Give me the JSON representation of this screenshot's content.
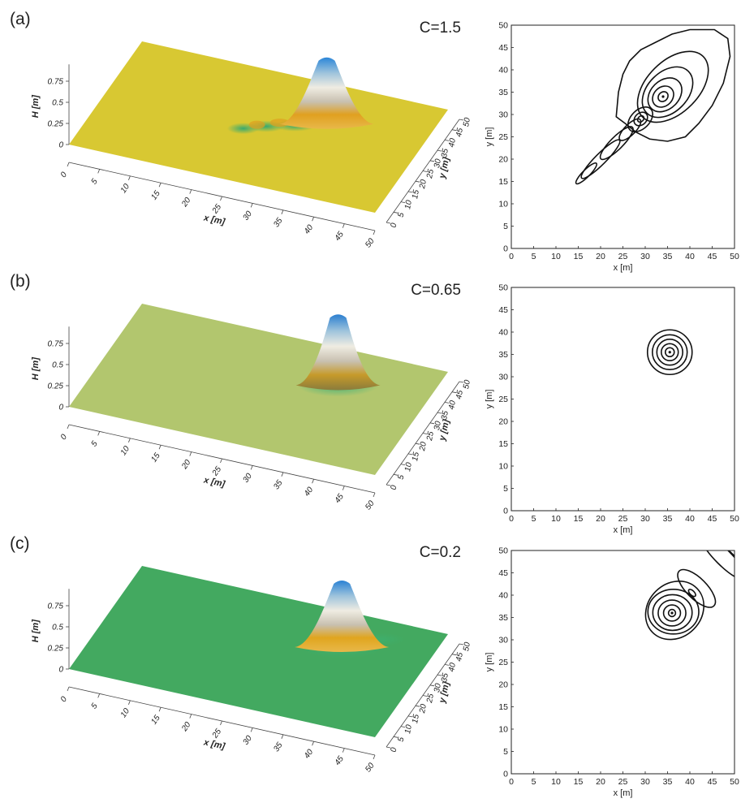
{
  "panels": [
    {
      "label": "(a)",
      "param": "C=1.5",
      "surface_color": "#d8c832",
      "peak_color": "#2b86d8",
      "crest_color": "#e0a020",
      "trough_color": "#2fa873"
    },
    {
      "label": "(b)",
      "param": "C=0.65",
      "surface_color": "#b2c66e",
      "peak_color": "#2b7fd0",
      "crest_color": "#c69a2a",
      "trough_color": "#3bb07a"
    },
    {
      "label": "(c)",
      "param": "C=0.2",
      "surface_color": "#43a960",
      "peak_color": "#2a82d4",
      "crest_color": "#e0a51e",
      "trough_color": "#3db06f"
    }
  ],
  "chart_data": [
    {
      "type": "surface",
      "panel": "(a)",
      "title": "C=1.5",
      "xlabel": "x [m]",
      "ylabel": "y [m]",
      "zlabel": "H [m]",
      "xlim": [
        0,
        50
      ],
      "ylim": [
        0,
        50
      ],
      "zlim": [
        0,
        0.75
      ],
      "x_ticks": [
        "0",
        "5",
        "10",
        "15",
        "20",
        "25",
        "30",
        "35",
        "40",
        "45",
        "50"
      ],
      "y_ticks": [
        "0",
        "5",
        "10",
        "15",
        "20",
        "25",
        "30",
        "35",
        "40",
        "45",
        "50"
      ],
      "z_ticks": [
        "0",
        "0.25",
        "0.5",
        "0.75"
      ],
      "peak": {
        "x": 34,
        "y": 34,
        "height": 0.75
      }
    },
    {
      "type": "contour",
      "panel": "(a)",
      "xlabel": "x [m]",
      "ylabel": "y [m]",
      "xlim": [
        0,
        50
      ],
      "ylim": [
        0,
        50
      ],
      "x_ticks": [
        "0",
        "5",
        "10",
        "15",
        "20",
        "25",
        "30",
        "35",
        "40",
        "45",
        "50"
      ],
      "y_ticks": [
        "0",
        "5",
        "10",
        "15",
        "20",
        "25",
        "30",
        "35",
        "40",
        "45",
        "50"
      ],
      "center": [
        34,
        34
      ],
      "contours": [
        {
          "kind": "ellipse",
          "cx": 34,
          "cy": 34,
          "rx": 1.2,
          "ry": 1.0,
          "angle": 45
        },
        {
          "kind": "ellipse",
          "cx": 34,
          "cy": 34,
          "rx": 2.6,
          "ry": 2.1,
          "angle": 45
        },
        {
          "kind": "ellipse",
          "cx": 34.4,
          "cy": 34.4,
          "rx": 4.3,
          "ry": 3.2,
          "angle": 45
        },
        {
          "kind": "ellipse",
          "cx": 35,
          "cy": 35,
          "rx": 6.6,
          "ry": 4.5,
          "angle": 45
        },
        {
          "kind": "ellipse",
          "cx": 36.2,
          "cy": 36.2,
          "rx": 9.6,
          "ry": 5.8,
          "angle": 45
        },
        {
          "kind": "ellipse",
          "cx": 29,
          "cy": 29,
          "rx": 0.8,
          "ry": 0.6,
          "angle": 45
        },
        {
          "kind": "ellipse",
          "cx": 29,
          "cy": 29,
          "rx": 1.7,
          "ry": 1.3,
          "angle": 45
        },
        {
          "kind": "ellipse",
          "cx": 28.9,
          "cy": 28.9,
          "rx": 3.3,
          "ry": 2.1,
          "angle": 45
        },
        {
          "kind": "ellipse",
          "cx": 26.6,
          "cy": 26.6,
          "rx": 3.2,
          "ry": 1.2,
          "angle": 45
        },
        {
          "kind": "ellipse",
          "cx": 23.6,
          "cy": 23.6,
          "rx": 5.0,
          "ry": 1.4,
          "angle": 45
        },
        {
          "kind": "ellipse",
          "cx": 20.0,
          "cy": 20.0,
          "rx": 6.0,
          "ry": 1.2,
          "angle": 45
        },
        {
          "kind": "ellipse",
          "cx": 16.8,
          "cy": 16.8,
          "rx": 3.2,
          "ry": 0.8,
          "angle": 45
        },
        {
          "kind": "polygon",
          "points": [
            [
              23.5,
              29.5
            ],
            [
              24,
              35
            ],
            [
              25,
              39
            ],
            [
              26.5,
              42
            ],
            [
              29,
              44.5
            ],
            [
              32,
              46
            ],
            [
              36,
              48
            ],
            [
              40,
              49
            ],
            [
              45.5,
              49
            ],
            [
              48.5,
              47
            ],
            [
              49,
              43
            ],
            [
              47.5,
              37
            ],
            [
              45,
              32
            ],
            [
              42,
              28
            ],
            [
              39,
              25
            ],
            [
              35,
              24
            ],
            [
              31,
              24.5
            ],
            [
              28,
              26
            ],
            [
              25.5,
              28
            ]
          ]
        }
      ]
    },
    {
      "type": "surface",
      "panel": "(b)",
      "title": "C=0.65",
      "xlabel": "x [m]",
      "ylabel": "y [m]",
      "zlabel": "H [m]",
      "xlim": [
        0,
        50
      ],
      "ylim": [
        0,
        50
      ],
      "zlim": [
        0,
        0.75
      ],
      "x_ticks": [
        "0",
        "5",
        "10",
        "15",
        "20",
        "25",
        "30",
        "35",
        "40",
        "45",
        "50"
      ],
      "y_ticks": [
        "0",
        "5",
        "10",
        "15",
        "20",
        "25",
        "30",
        "35",
        "40",
        "45",
        "50"
      ],
      "z_ticks": [
        "0",
        "0.25",
        "0.5",
        "0.75"
      ],
      "peak": {
        "x": 35.5,
        "y": 35.5,
        "height": 0.8
      }
    },
    {
      "type": "contour",
      "panel": "(b)",
      "xlabel": "x [m]",
      "ylabel": "y [m]",
      "xlim": [
        0,
        50
      ],
      "ylim": [
        0,
        50
      ],
      "x_ticks": [
        "0",
        "5",
        "10",
        "15",
        "20",
        "25",
        "30",
        "35",
        "40",
        "45",
        "50"
      ],
      "y_ticks": [
        "0",
        "5",
        "10",
        "15",
        "20",
        "25",
        "30",
        "35",
        "40",
        "45",
        "50"
      ],
      "center": [
        35.5,
        35.5
      ],
      "contours": [
        {
          "kind": "ellipse",
          "cx": 35.5,
          "cy": 35.5,
          "rx": 1.0,
          "ry": 1.0,
          "angle": 0
        },
        {
          "kind": "ellipse",
          "cx": 35.5,
          "cy": 35.5,
          "rx": 1.9,
          "ry": 1.9,
          "angle": 0
        },
        {
          "kind": "ellipse",
          "cx": 35.5,
          "cy": 35.5,
          "rx": 2.9,
          "ry": 2.9,
          "angle": 0
        },
        {
          "kind": "ellipse",
          "cx": 35.5,
          "cy": 35.5,
          "rx": 3.9,
          "ry": 3.9,
          "angle": 0
        },
        {
          "kind": "ellipse",
          "cx": 35.5,
          "cy": 35.5,
          "rx": 5.0,
          "ry": 5.0,
          "angle": 0
        }
      ]
    },
    {
      "type": "surface",
      "panel": "(c)",
      "title": "C=0.2",
      "xlabel": "x [m]",
      "ylabel": "y [m]",
      "zlabel": "H [m]",
      "xlim": [
        0,
        50
      ],
      "ylim": [
        0,
        50
      ],
      "zlim": [
        0,
        0.75
      ],
      "x_ticks": [
        "0",
        "5",
        "10",
        "15",
        "20",
        "25",
        "30",
        "35",
        "40",
        "45",
        "50"
      ],
      "y_ticks": [
        "0",
        "5",
        "10",
        "15",
        "20",
        "25",
        "30",
        "35",
        "40",
        "45",
        "50"
      ],
      "z_ticks": [
        "0",
        "0.25",
        "0.5",
        "0.75"
      ],
      "peak": {
        "x": 36,
        "y": 36,
        "height": 0.75
      }
    },
    {
      "type": "contour",
      "panel": "(c)",
      "xlabel": "x [m]",
      "ylabel": "y [m]",
      "xlim": [
        0,
        50
      ],
      "ylim": [
        0,
        50
      ],
      "x_ticks": [
        "0",
        "5",
        "10",
        "15",
        "20",
        "25",
        "30",
        "35",
        "40",
        "45",
        "50"
      ],
      "y_ticks": [
        "0",
        "5",
        "10",
        "15",
        "20",
        "25",
        "30",
        "35",
        "40",
        "45",
        "50"
      ],
      "center": [
        36,
        36
      ],
      "contours": [
        {
          "kind": "ellipse",
          "cx": 36,
          "cy": 36,
          "rx": 0.8,
          "ry": 0.8,
          "angle": 0
        },
        {
          "kind": "ellipse",
          "cx": 36,
          "cy": 36,
          "rx": 1.9,
          "ry": 1.8,
          "angle": 0
        },
        {
          "kind": "ellipse",
          "cx": 36,
          "cy": 36,
          "rx": 3.1,
          "ry": 2.9,
          "angle": 0
        },
        {
          "kind": "ellipse",
          "cx": 36.1,
          "cy": 36.1,
          "rx": 4.4,
          "ry": 4.0,
          "angle": 0
        },
        {
          "kind": "ellipse",
          "cx": 36.3,
          "cy": 36.3,
          "rx": 5.7,
          "ry": 5.0,
          "angle": 0
        },
        {
          "kind": "ellipse",
          "cx": 36.6,
          "cy": 36.6,
          "rx": 7.0,
          "ry": 6.0,
          "angle": 45
        },
        {
          "kind": "ellipse",
          "cx": 40.5,
          "cy": 40.5,
          "rx": 1.0,
          "ry": 0.5,
          "angle": -45
        },
        {
          "kind": "ellipse",
          "cx": 41.5,
          "cy": 41.5,
          "rx": 5.5,
          "ry": 2.3,
          "angle": -45
        },
        {
          "kind": "ellipse",
          "cx": 47.5,
          "cy": 48.5,
          "rx": 7.0,
          "ry": 1.8,
          "angle": -45
        },
        {
          "kind": "ellipse",
          "cx": 50,
          "cy": 51,
          "rx": 7.0,
          "ry": 1.6,
          "angle": -45
        }
      ]
    }
  ]
}
